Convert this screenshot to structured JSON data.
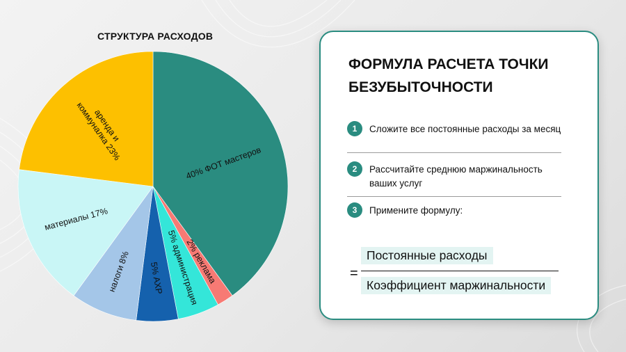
{
  "chart_data": {
    "type": "pie",
    "title": "СТРУКТУРА РАСХОДОВ",
    "categories": [
      "ФОТ мастеров",
      "реклама",
      "администрация",
      "АХР",
      "налоги",
      "материалы",
      "аренда и коммуналка"
    ],
    "values": [
      40,
      2,
      5,
      5,
      8,
      17,
      23
    ],
    "slice_labels": [
      "40% ФОТ мастеров",
      "2% реклама",
      "5% администрация",
      "5% АХР",
      "налоги 8%",
      "материалы 17%",
      "аренда и коммуналка 23%"
    ],
    "colors": [
      "#2a8c80",
      "#f77a74",
      "#34e6d9",
      "#1561ad",
      "#a4c6e8",
      "#c9f6f6",
      "#fdc000"
    ]
  },
  "card": {
    "title_line1": "ФОРМУЛА РАСЧЕТА ТОЧКИ",
    "title_line2": "БЕЗУБЫТОЧНОСТИ",
    "steps": [
      {
        "num": "1",
        "text": "Сложите все постоянные расходы за месяц"
      },
      {
        "num": "2",
        "text": "Рассчитайте среднюю маржинальность ваших услуг"
      },
      {
        "num": "3",
        "text": "Примените формулу:"
      }
    ],
    "formula": {
      "equals": "=",
      "numerator": "Постоянные расходы",
      "denominator": "Коэффициент маржинальности"
    },
    "accent_color": "#2a8c80"
  }
}
